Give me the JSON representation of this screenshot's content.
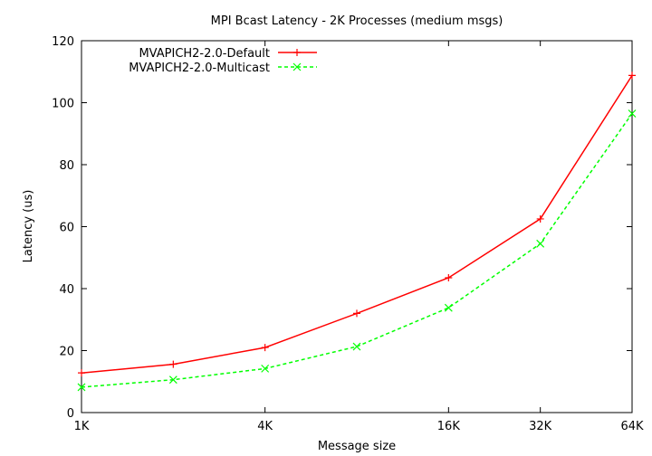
{
  "chart_data": {
    "type": "line",
    "title": "MPI Bcast Latency - 2K Processes (medium msgs)",
    "xlabel": "Message size",
    "ylabel": "Latency (us)",
    "x_scale": "log2",
    "x": [
      "1K",
      "2K",
      "4K",
      "8K",
      "16K",
      "32K",
      "64K"
    ],
    "x_ticks": [
      "1K",
      "4K",
      "16K",
      "32K",
      "64K"
    ],
    "ylim": [
      0,
      120
    ],
    "y_ticks": [
      "0",
      "20",
      "40",
      "60",
      "80",
      "100",
      "120"
    ],
    "grid": false,
    "legend_position": "top-left",
    "series": [
      {
        "name": "MVAPICH2-2.0-Default",
        "color": "#ff0000",
        "marker": "plus",
        "dash": "solid",
        "values": [
          12.8,
          15.6,
          21.0,
          32.0,
          43.5,
          62.5,
          108.8
        ]
      },
      {
        "name": "MVAPICH2-2.0-Multicast",
        "color": "#00ff00",
        "marker": "cross",
        "dash": "dashed",
        "values": [
          8.2,
          10.6,
          14.2,
          21.3,
          33.8,
          54.5,
          96.5
        ]
      }
    ]
  }
}
